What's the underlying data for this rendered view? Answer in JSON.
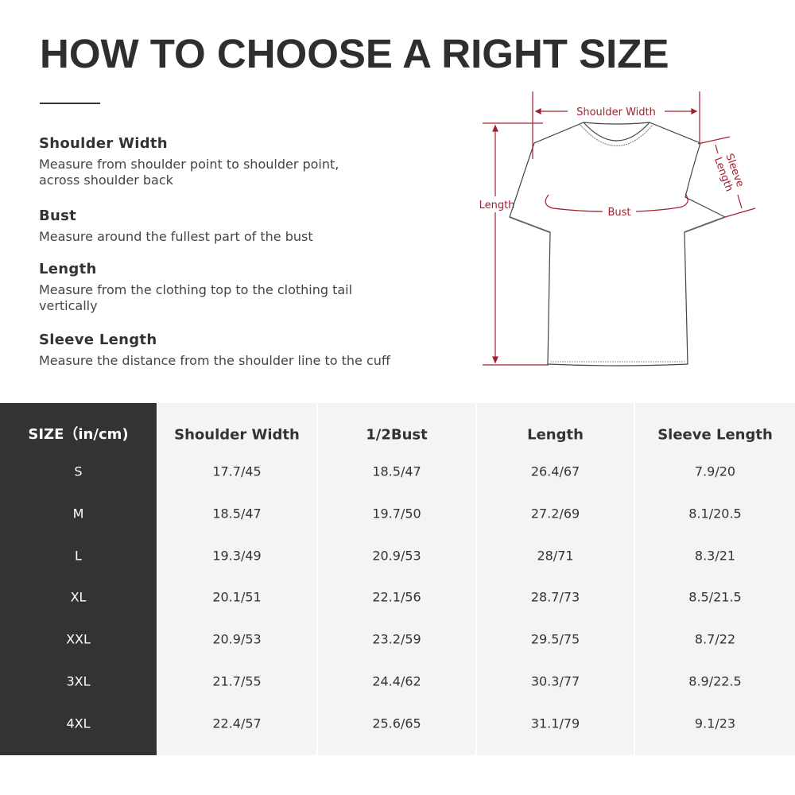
{
  "title": "HOW TO CHOOSE A RIGHT SIZE",
  "guide": [
    {
      "heading": "Shoulder Width",
      "text": "Measure from shoulder point to shoulder point, across shoulder back"
    },
    {
      "heading": "Bust",
      "text": "Measure around the fullest part of the bust"
    },
    {
      "heading": "Length",
      "text": "Measure from the clothing top to the clothing tail vertically"
    },
    {
      "heading": "Sleeve Length",
      "text": "Measure the distance from the shoulder line to the cuff"
    }
  ],
  "diagram": {
    "shoulder_width": "Shoulder Width",
    "length": "Length",
    "bust": "Bust",
    "sleeve_length": "Sleeve Length",
    "annotation_color": "#a3202e"
  },
  "table": {
    "headers": [
      "SIZE（in/cm)",
      "Shoulder Width",
      "1/2Bust",
      "Length",
      "Sleeve Length"
    ],
    "rows": [
      [
        "S",
        "17.7/45",
        "18.5/47",
        "26.4/67",
        "7.9/20"
      ],
      [
        "M",
        "18.5/47",
        "19.7/50",
        "27.2/69",
        "8.1/20.5"
      ],
      [
        "L",
        "19.3/49",
        "20.9/53",
        "28/71",
        "8.3/21"
      ],
      [
        "XL",
        "20.1/51",
        "22.1/56",
        "28.7/73",
        "8.5/21.5"
      ],
      [
        "XXL",
        "20.9/53",
        "23.2/59",
        "29.5/75",
        "8.7/22"
      ],
      [
        "3XL",
        "21.7/55",
        "24.4/62",
        "30.3/77",
        "8.9/22.5"
      ],
      [
        "4XL",
        "22.4/57",
        "25.6/65",
        "31.1/79",
        "9.1/23"
      ]
    ]
  }
}
